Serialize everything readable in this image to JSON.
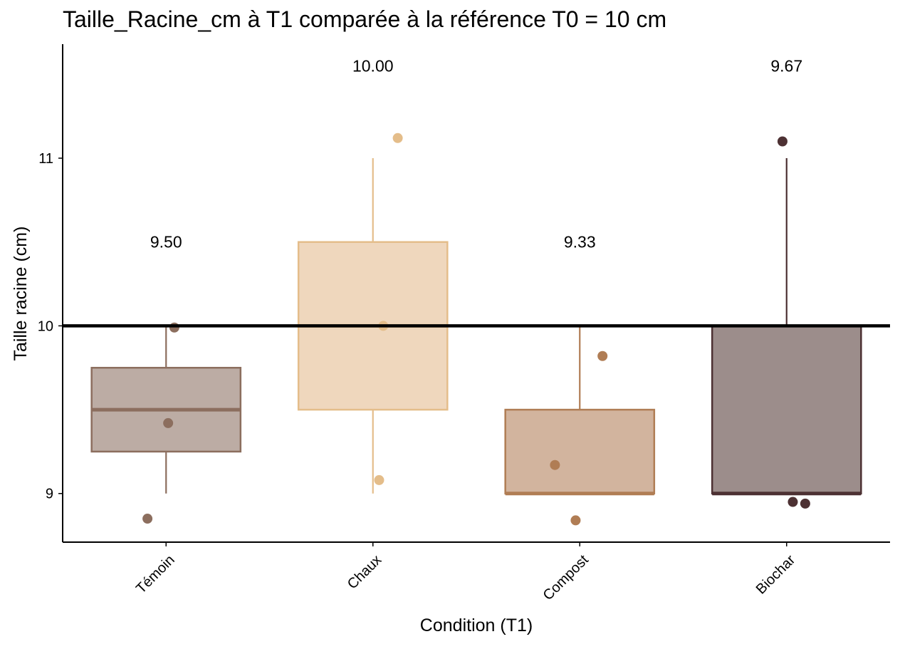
{
  "chart_data": {
    "type": "box",
    "title": "Taille_Racine_cm à T1 comparée à la référence T0 = 10 cm",
    "xlabel": "Condition (T1)",
    "ylabel": "Taille racine (cm)",
    "ylim": [
      8.71,
      11.68
    ],
    "yticks": [
      9,
      10,
      11
    ],
    "reference_line": {
      "y": 10,
      "color": "#000000"
    },
    "categories": [
      "Témoin",
      "Chaux",
      "Compost",
      "Biochar"
    ],
    "groups": [
      {
        "name": "Témoin",
        "color": "#8C6E5E",
        "fill": "#BCACA4",
        "min": 9,
        "q1": 9.25,
        "median": 9.5,
        "q3": 9.75,
        "max": 10,
        "mean_label": "9.50",
        "mean_label_y": 10.5,
        "points": [
          {
            "dx": 0.04,
            "y": 9.99
          },
          {
            "dx": 0.01,
            "y": 9.42
          },
          {
            "dx": -0.09,
            "y": 8.85
          }
        ]
      },
      {
        "name": "Chaux",
        "color": "#E4BD8A",
        "fill": "#EFD7BD",
        "min": 9,
        "q1": 9.5,
        "median": 10,
        "q3": 10.5,
        "max": 11,
        "mean_label": "10.00",
        "mean_label_y": 11.55,
        "points": [
          {
            "dx": 0.12,
            "y": 11.12
          },
          {
            "dx": 0.05,
            "y": 10.0
          },
          {
            "dx": 0.03,
            "y": 9.08
          }
        ]
      },
      {
        "name": "Compost",
        "color": "#B07D54",
        "fill": "#D2B49E",
        "min": 9,
        "q1": 9,
        "median": 9,
        "q3": 9.5,
        "max": 10,
        "mean_label": "9.33",
        "mean_label_y": 10.5,
        "points": [
          {
            "dx": 0.11,
            "y": 9.82
          },
          {
            "dx": -0.12,
            "y": 9.17
          },
          {
            "dx": -0.02,
            "y": 8.84
          }
        ]
      },
      {
        "name": "Biochar",
        "color": "#4D3133",
        "fill": "#9C8D8B",
        "min": 9,
        "q1": 9,
        "median": 9,
        "q3": 10,
        "max": 11,
        "mean_label": "9.67",
        "mean_label_y": 11.55,
        "points": [
          {
            "dx": -0.02,
            "y": 11.1
          },
          {
            "dx": 0.03,
            "y": 8.95
          },
          {
            "dx": 0.09,
            "y": 8.94
          }
        ]
      }
    ]
  }
}
